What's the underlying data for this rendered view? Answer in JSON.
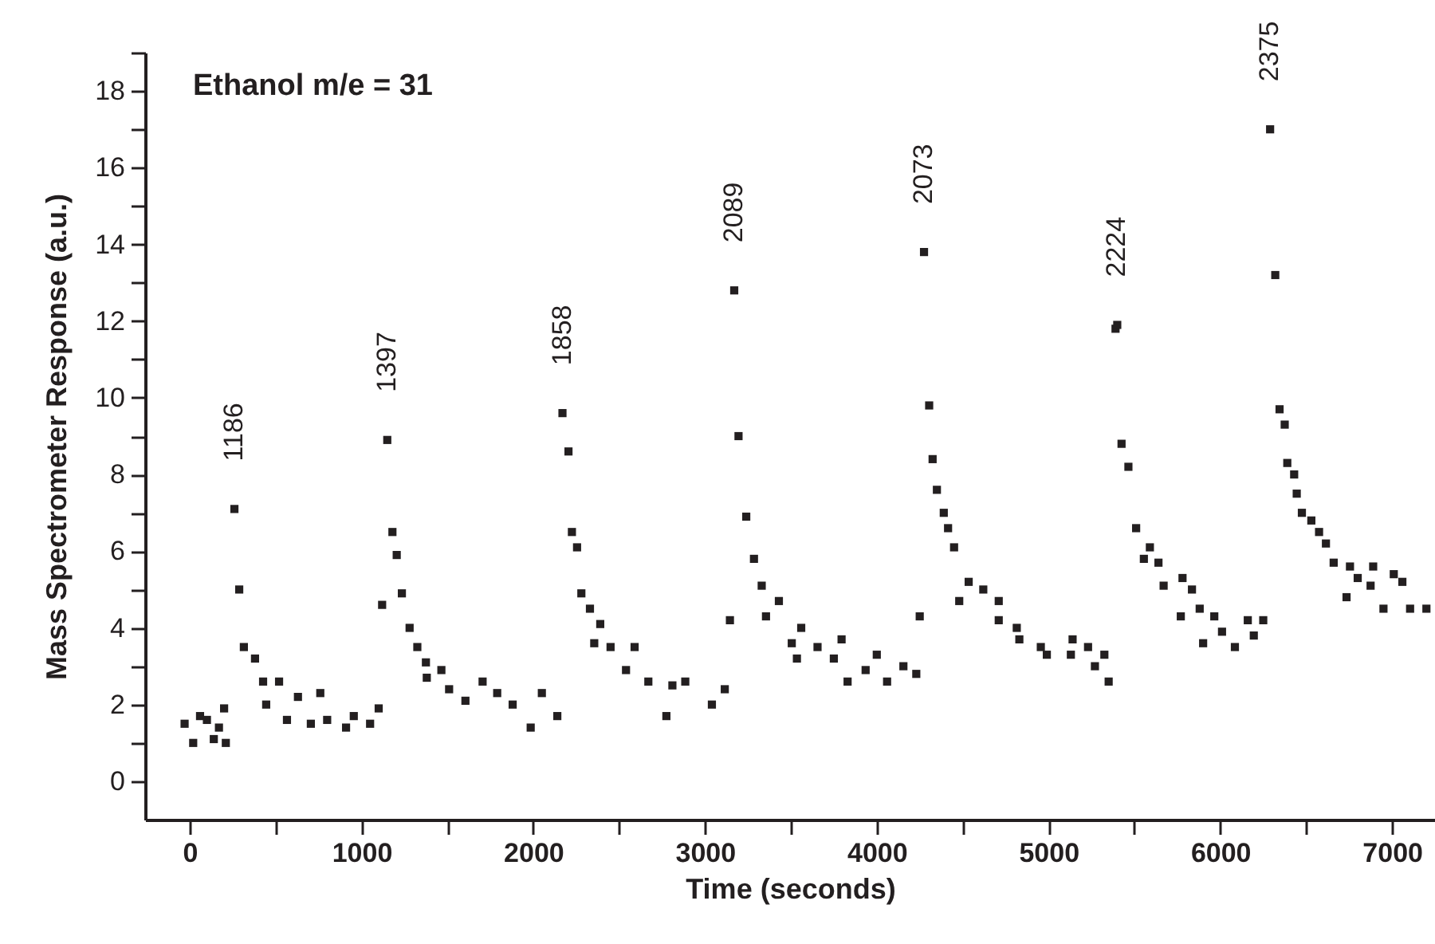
{
  "chart_data": {
    "type": "scatter",
    "title": "Ethanol m/e = 31",
    "xlabel": "Time (seconds)",
    "ylabel": "Mass Spectrometer Response (a.u.)",
    "xlim": [
      -260,
      7250
    ],
    "ylim": [
      -1,
      19
    ],
    "xticks": [
      0,
      {
        "value": 500,
        "label": null
      },
      1000,
      {
        "value": 1500,
        "label": null
      },
      2000,
      {
        "value": 2500,
        "label": null
      },
      3000,
      {
        "value": 3500,
        "label": null
      },
      4000,
      {
        "value": 4500,
        "label": null
      },
      5000,
      {
        "value": 5500,
        "label": null
      },
      6000,
      {
        "value": 6500,
        "label": null
      },
      7000
    ],
    "yticks": [
      0,
      {
        "value": 1,
        "label": null
      },
      2,
      {
        "value": 3,
        "label": null
      },
      4,
      {
        "value": 5,
        "label": null
      },
      6,
      {
        "value": 7,
        "label": null
      },
      8,
      {
        "value": 9,
        "label": null
      },
      10,
      {
        "value": 11,
        "label": null
      },
      12,
      {
        "value": 13,
        "label": null
      },
      14,
      {
        "value": 15,
        "label": null
      },
      16,
      {
        "value": 17,
        "label": null
      },
      18,
      {
        "value": 19,
        "label": null
      }
    ],
    "marker": "square",
    "annotations": [
      {
        "text": "1186",
        "x": 260,
        "y": 7.1
      },
      {
        "text": "1397",
        "x": 1150,
        "y": 8.9
      },
      {
        "text": "1858",
        "x": 2170,
        "y": 9.6
      },
      {
        "text": "2089",
        "x": 3170,
        "y": 12.8
      },
      {
        "text": "2073",
        "x": 4275,
        "y": 13.8
      },
      {
        "text": "2224",
        "x": 5400,
        "y": 11.9
      },
      {
        "text": "2375",
        "x": 6290,
        "y": 17.0
      }
    ],
    "series": [
      {
        "color": "#231f20",
        "x": [
          -30,
          20,
          60,
          100,
          140,
          170,
          200,
          210,
          260,
          288,
          315,
          380,
          427,
          520,
          445,
          630,
          566,
          760,
          705,
          800,
          910,
          955,
          1050,
          1100,
          1120,
          1150,
          1180,
          1205,
          1235,
          1280,
          1325,
          1375,
          1380,
          1465,
          1510,
          1605,
          1705,
          1790,
          1880,
          1985,
          2050,
          2140,
          2170,
          2205,
          2225,
          2255,
          2280,
          2330,
          2390,
          2355,
          2450,
          2590,
          2540,
          2670,
          2775,
          2810,
          2885,
          3040,
          3115,
          3145,
          3170,
          3195,
          3240,
          3285,
          3330,
          3430,
          3355,
          3560,
          3505,
          3535,
          3655,
          3795,
          3750,
          3830,
          4000,
          3935,
          4060,
          4155,
          4230,
          4250,
          4275,
          4305,
          4325,
          4350,
          4390,
          4415,
          4450,
          4535,
          4480,
          4620,
          4710,
          4710,
          4815,
          4830,
          4955,
          4990,
          5140,
          5130,
          5230,
          5270,
          5325,
          5350,
          5390,
          5400,
          5425,
          5465,
          5510,
          5590,
          5555,
          5640,
          5670,
          5780,
          5835,
          5770,
          5880,
          5965,
          5900,
          6010,
          6085,
          6160,
          6250,
          6195,
          6290,
          6320,
          6345,
          6375,
          6390,
          6430,
          6445,
          6475,
          6530,
          6575,
          6615,
          6660,
          6755,
          6800,
          6735,
          6890,
          6875,
          6950,
          7010,
          7060,
          7105,
          7200
        ],
        "values": [
          1.5,
          1.0,
          1.7,
          1.6,
          1.1,
          1.4,
          1.9,
          1.0,
          7.1,
          5.0,
          3.5,
          3.2,
          2.6,
          2.6,
          2.0,
          2.2,
          1.6,
          2.3,
          1.5,
          1.6,
          1.4,
          1.7,
          1.5,
          1.9,
          4.6,
          8.9,
          6.5,
          5.9,
          4.9,
          4.0,
          3.5,
          3.1,
          2.7,
          2.9,
          2.4,
          2.1,
          2.6,
          2.3,
          2.0,
          1.4,
          2.3,
          1.7,
          9.6,
          8.6,
          6.5,
          6.1,
          4.9,
          4.5,
          4.1,
          3.6,
          3.5,
          3.5,
          2.9,
          2.6,
          1.7,
          2.5,
          2.6,
          2.0,
          2.4,
          4.2,
          12.8,
          9.0,
          6.9,
          5.8,
          5.1,
          4.7,
          4.3,
          4.0,
          3.6,
          3.2,
          3.5,
          3.7,
          3.2,
          2.6,
          3.3,
          2.9,
          2.6,
          3.0,
          2.8,
          4.3,
          13.8,
          9.8,
          8.4,
          7.6,
          7.0,
          6.6,
          6.1,
          5.2,
          4.7,
          5.0,
          4.7,
          4.2,
          4.0,
          3.7,
          3.5,
          3.3,
          3.7,
          3.3,
          3.5,
          3.0,
          3.3,
          2.6,
          11.8,
          11.9,
          8.8,
          8.2,
          6.6,
          6.1,
          5.8,
          5.7,
          5.1,
          5.3,
          5.0,
          4.3,
          4.5,
          4.3,
          3.6,
          3.9,
          3.5,
          4.2,
          4.2,
          3.8,
          17.0,
          13.2,
          9.7,
          9.3,
          8.3,
          8.0,
          7.5,
          7.0,
          6.8,
          6.5,
          6.2,
          5.7,
          5.6,
          5.3,
          4.8,
          5.6,
          5.1,
          4.5,
          5.4,
          5.2,
          4.5,
          4.5
        ]
      }
    ]
  }
}
